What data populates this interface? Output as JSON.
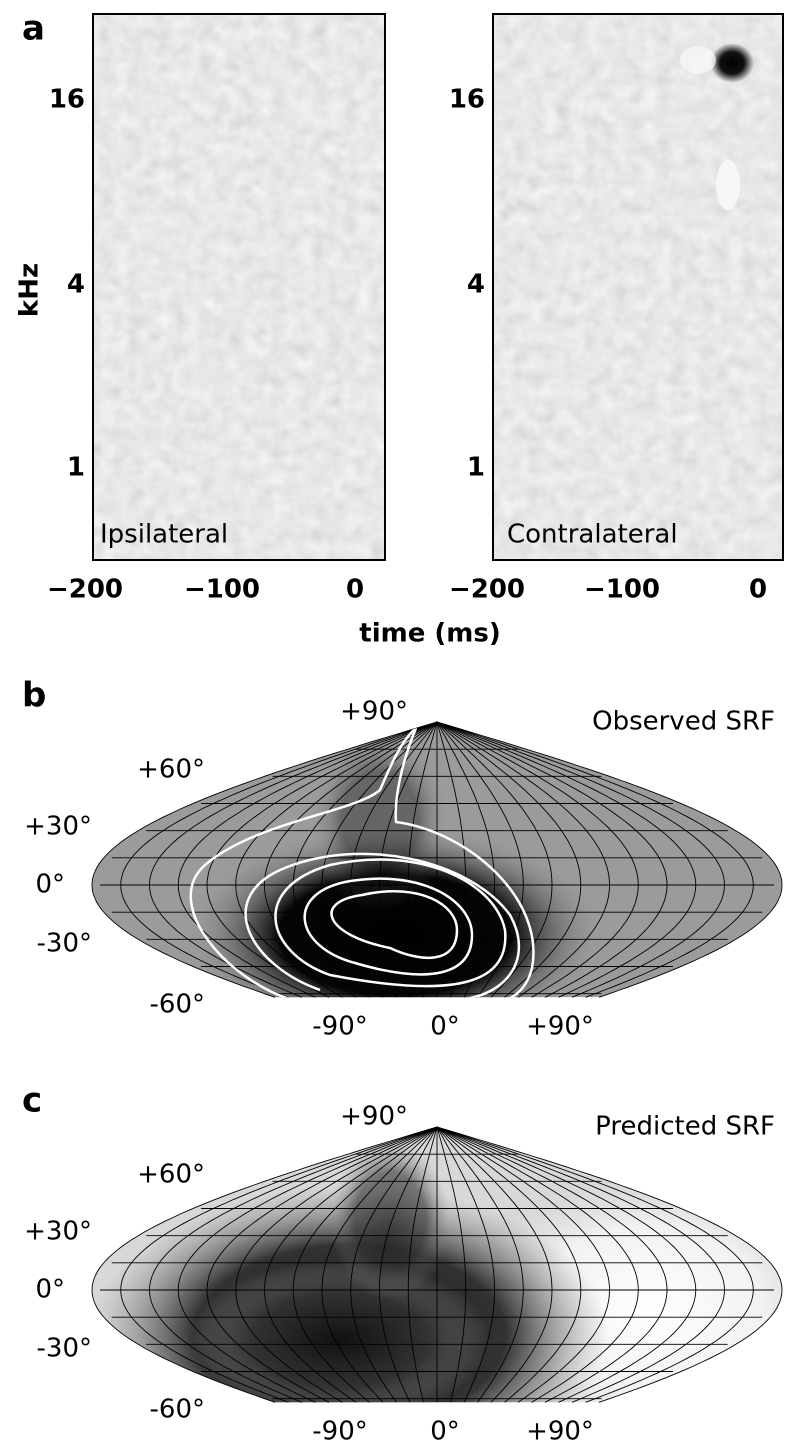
{
  "panel_a": {
    "label": "a",
    "y_axis_label": "kHz",
    "x_axis_label": "time (ms)",
    "yticks": [
      "16",
      "4",
      "1"
    ],
    "xticks": [
      "−200",
      "−100",
      "0"
    ],
    "left_title": "Ipsilateral",
    "right_title": "Contralateral"
  },
  "panel_b": {
    "label": "b",
    "title": "Observed SRF",
    "lat_labels": [
      "+90°",
      "+60°",
      "+30°",
      "0°",
      "-30°",
      "-60°"
    ],
    "lon_labels": [
      "-90°",
      "0°",
      "+90°"
    ]
  },
  "panel_c": {
    "label": "c",
    "title": "Predicted SRF",
    "lat_labels": [
      "+90°",
      "+60°",
      "+30°",
      "0°",
      "-30°",
      "-60°"
    ],
    "lon_labels": [
      "-90°",
      "0°",
      "+90°"
    ]
  }
}
